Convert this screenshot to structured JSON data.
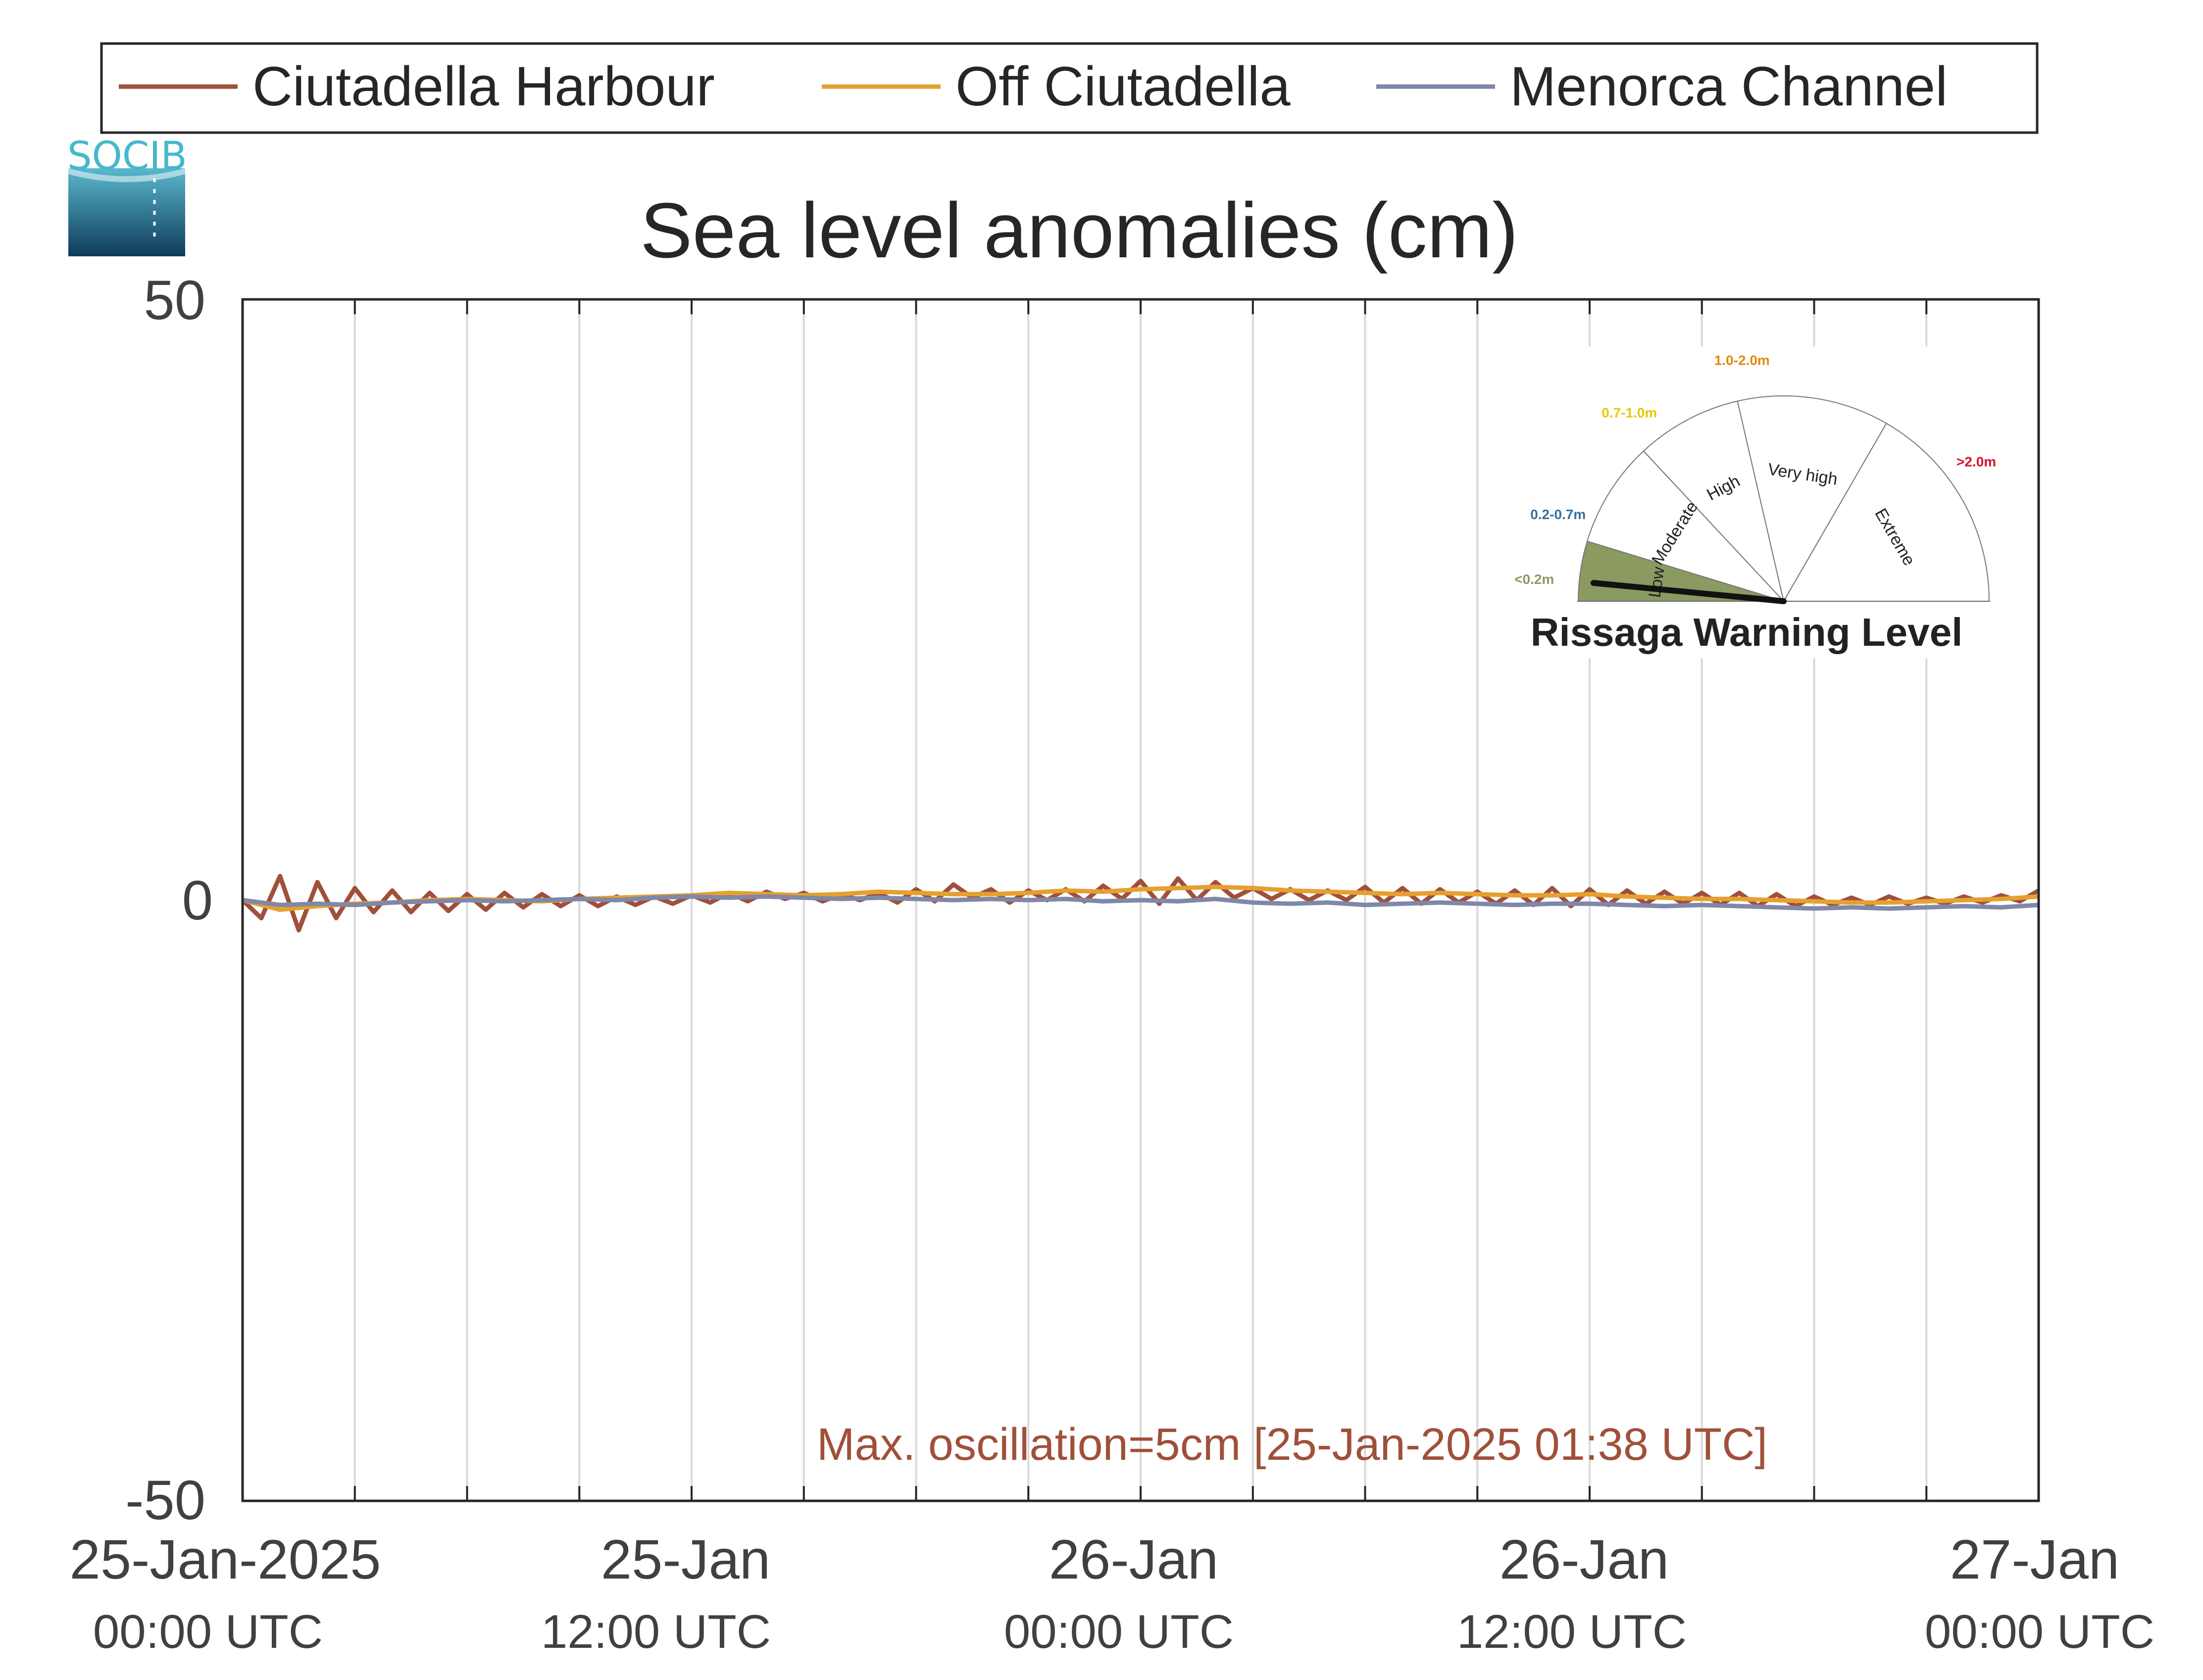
{
  "logo": {
    "text": "SOCIB"
  },
  "legend": [
    {
      "name": "Ciutadella Harbour",
      "color": "#a0503a"
    },
    {
      "name": "Off Ciutadella",
      "color": "#e5a030"
    },
    {
      "name": "Menorca Channel",
      "color": "#7f88a8"
    }
  ],
  "gauge": {
    "title": "Rissaga Warning Level",
    "levels": [
      {
        "label": "Low",
        "range": "<0.2m",
        "color": "#8a9a60",
        "range_color": "#8a9a60",
        "active": true
      },
      {
        "label": "Moderate",
        "range": "0.2-0.7m",
        "color": "#ffffff",
        "range_color": "#3a6e9a",
        "active": false
      },
      {
        "label": "High",
        "range": "0.7-1.0m",
        "color": "#ffffff",
        "range_color": "#e8c800",
        "active": false
      },
      {
        "label": "Very high",
        "range": "1.0-2.0m",
        "color": "#ffffff",
        "range_color": "#e08a10",
        "active": false
      },
      {
        "label": "Extreme",
        "range": ">2.0m",
        "color": "#ffffff",
        "range_color": "#d8102a",
        "active": false
      }
    ],
    "needle_level": "Low"
  },
  "chart_data": {
    "type": "line",
    "title": "Sea level anomalies (cm)",
    "xlabel": "",
    "ylabel": "",
    "ylim": [
      -50,
      50
    ],
    "y_ticks": [
      "50",
      "0",
      "-50"
    ],
    "x_range_hours": [
      0,
      48
    ],
    "x_ticks": [
      {
        "line1": "25-Jan-2025",
        "line2": "00:00 UTC"
      },
      {
        "line1": "25-Jan",
        "line2": "12:00 UTC"
      },
      {
        "line1": "26-Jan",
        "line2": "00:00 UTC"
      },
      {
        "line1": "26-Jan",
        "line2": "12:00 UTC"
      },
      {
        "line1": "27-Jan",
        "line2": "00:00 UTC"
      }
    ],
    "grid": true,
    "grid_step_hours": 3,
    "legend_position": "top",
    "series": [
      {
        "name": "Ciutadella Harbour",
        "color": "#a0503a",
        "x_hours": [
          0,
          0.5,
          1,
          1.5,
          2,
          2.5,
          3,
          3.5,
          4,
          4.5,
          5,
          5.5,
          6,
          6.5,
          7,
          7.5,
          8,
          8.5,
          9,
          9.5,
          10,
          10.5,
          11,
          11.5,
          12,
          12.5,
          13,
          13.5,
          14,
          14.5,
          15,
          15.5,
          16,
          16.5,
          17,
          17.5,
          18,
          18.5,
          19,
          19.5,
          20,
          20.5,
          21,
          21.5,
          22,
          22.5,
          23,
          23.5,
          24,
          24.5,
          25,
          25.5,
          26,
          26.5,
          27,
          27.5,
          28,
          28.5,
          29,
          29.5,
          30,
          30.5,
          31,
          31.5,
          32,
          32.5,
          33,
          33.5,
          34,
          34.5,
          35,
          35.5,
          36,
          36.5,
          37,
          37.5,
          38,
          38.5,
          39,
          39.5,
          40,
          40.5,
          41,
          41.5,
          42,
          42.5,
          43,
          43.5,
          44,
          44.5,
          45,
          45.5,
          46,
          46.5,
          47,
          47.5,
          48
        ],
        "values": [
          0,
          -1.5,
          2,
          -2.5,
          1.5,
          -1.5,
          1,
          -1,
          0.8,
          -1,
          0.6,
          -0.9,
          0.5,
          -0.8,
          0.6,
          -0.6,
          0.5,
          -0.5,
          0.4,
          -0.5,
          0.3,
          -0.4,
          0.3,
          -0.3,
          0.4,
          -0.2,
          0.6,
          -0.1,
          0.7,
          0.1,
          0.6,
          -0.1,
          0.5,
          0,
          0.6,
          -0.2,
          0.9,
          -0.1,
          1.3,
          0.2,
          0.9,
          -0.2,
          0.8,
          0,
          0.9,
          -0.1,
          1.2,
          0.1,
          1.6,
          -0.3,
          1.8,
          0,
          1.5,
          0.2,
          1,
          0.1,
          0.9,
          0,
          0.8,
          0,
          1.1,
          -0.2,
          1,
          -0.3,
          0.9,
          -0.2,
          0.7,
          -0.3,
          0.8,
          -0.4,
          1,
          -0.5,
          0.9,
          -0.4,
          0.8,
          -0.3,
          0.7,
          -0.3,
          0.6,
          -0.4,
          0.6,
          -0.5,
          0.5,
          -0.5,
          0.3,
          -0.4,
          0.2,
          -0.4,
          0.3,
          -0.3,
          0.2,
          -0.3,
          0.3,
          -0.2,
          0.4,
          -0.1,
          0.8
        ]
      },
      {
        "name": "Off Ciutadella",
        "color": "#e5a030",
        "x_hours": [
          0,
          1,
          2,
          3,
          4,
          5,
          6,
          7,
          8,
          9,
          10,
          11,
          12,
          13,
          14,
          15,
          16,
          17,
          18,
          19,
          20,
          21,
          22,
          23,
          24,
          25,
          26,
          27,
          28,
          29,
          30,
          31,
          32,
          33,
          34,
          35,
          36,
          37,
          38,
          39,
          40,
          41,
          42,
          43,
          44,
          45,
          46,
          47,
          48
        ],
        "values": [
          0,
          -0.8,
          -0.5,
          -0.3,
          -0.2,
          0,
          0.1,
          0,
          -0.1,
          0.1,
          0.2,
          0.3,
          0.4,
          0.6,
          0.5,
          0.4,
          0.5,
          0.7,
          0.6,
          0.5,
          0.5,
          0.6,
          0.8,
          0.7,
          0.9,
          1.0,
          1.1,
          1.0,
          0.8,
          0.7,
          0.6,
          0.5,
          0.6,
          0.5,
          0.4,
          0.4,
          0.5,
          0.3,
          0.2,
          0.1,
          0.1,
          0,
          -0.1,
          -0.2,
          -0.2,
          -0.1,
          0,
          0.1,
          0.3
        ]
      },
      {
        "name": "Menorca Channel",
        "color": "#7f88a8",
        "x_hours": [
          0,
          1,
          2,
          3,
          4,
          5,
          6,
          7,
          8,
          9,
          10,
          11,
          12,
          13,
          14,
          15,
          16,
          17,
          18,
          19,
          20,
          21,
          22,
          23,
          24,
          25,
          26,
          27,
          28,
          29,
          30,
          31,
          32,
          33,
          34,
          35,
          36,
          37,
          38,
          39,
          40,
          41,
          42,
          43,
          44,
          45,
          46,
          47,
          48
        ],
        "values": [
          0,
          -0.4,
          -0.3,
          -0.4,
          -0.2,
          -0.1,
          0,
          -0.1,
          0,
          0.1,
          0,
          0.2,
          0.3,
          0.2,
          0.3,
          0.2,
          0.1,
          0.2,
          0.1,
          0,
          0.1,
          0,
          0.1,
          -0.1,
          0,
          -0.1,
          0.1,
          -0.2,
          -0.3,
          -0.2,
          -0.4,
          -0.3,
          -0.2,
          -0.3,
          -0.4,
          -0.3,
          -0.3,
          -0.4,
          -0.5,
          -0.4,
          -0.5,
          -0.6,
          -0.7,
          -0.6,
          -0.7,
          -0.6,
          -0.5,
          -0.6,
          -0.4
        ]
      }
    ],
    "annotation": "Max. oscillation=5cm [25-Jan-2025 01:38 UTC]"
  }
}
